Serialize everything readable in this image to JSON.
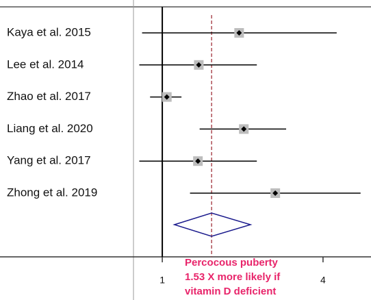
{
  "chart_data": {
    "type": "forest",
    "categories": [
      "Kaya et al. 2015",
      "Lee et al. 2014",
      "Zhao et al. 2017",
      "Liang et al. 2020",
      "Yang et al. 2017",
      "Zhong et al. 2019"
    ],
    "values": [
      1.94,
      1.37,
      1.04,
      2.02,
      1.36,
      2.65
    ],
    "lower": [
      0.84,
      0.82,
      0.9,
      1.38,
      0.82,
      1.27
    ],
    "upper": [
      4.5,
      2.26,
      1.18,
      2.91,
      2.26,
      5.53
    ],
    "summary": {
      "value": 1.53,
      "lower": 1.11,
      "upper": 2.14
    },
    "null_line": 1,
    "xlim": [
      0.78,
      6.05
    ],
    "xticks": [
      1,
      4
    ],
    "log_x": true,
    "color": "#000000",
    "summary_color": "#1a1a8c",
    "reference_color": "#a0303a",
    "annotation_color": "#e8246a",
    "annotation": [
      "Percocous puberty",
      "1.53 X more likely if",
      "vitamin D deficient"
    ]
  }
}
